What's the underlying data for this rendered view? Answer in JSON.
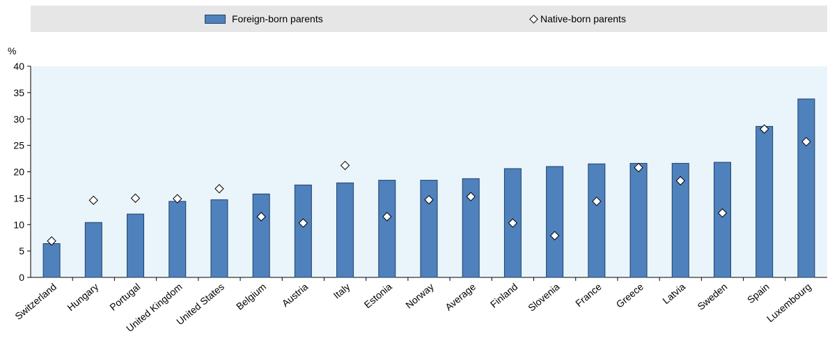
{
  "legend": {
    "foreign_label": "Foreign-born parents",
    "native_label": "Native-born parents"
  },
  "colors": {
    "bar_fill": "#4f81bd",
    "bar_stroke": "#1f3f66",
    "plot_bg": "#e9f5fb"
  },
  "chart_data": {
    "type": "bar",
    "ylabel": "%",
    "ylim": [
      0,
      40
    ],
    "yticks": [
      0,
      5,
      10,
      15,
      20,
      25,
      30,
      35,
      40
    ],
    "categories": [
      "Switzerland",
      "Hungary",
      "Portugal",
      "United Kingdom",
      "United States",
      "Belgium",
      "Austria",
      "Italy",
      "Estonia",
      "Norway",
      "Average",
      "Finland",
      "Slovenia",
      "France",
      "Greece",
      "Latvia",
      "Sweden",
      "Spain",
      "Luxembourg"
    ],
    "series": [
      {
        "name": "Foreign-born parents",
        "kind": "bar",
        "values": [
          6.4,
          10.4,
          12.0,
          14.4,
          14.7,
          15.8,
          17.5,
          17.9,
          18.4,
          18.4,
          18.7,
          20.6,
          21.0,
          21.5,
          21.6,
          21.6,
          21.8,
          28.6,
          33.8
        ]
      },
      {
        "name": "Native-born parents",
        "kind": "marker",
        "values": [
          6.9,
          14.6,
          15.0,
          14.9,
          16.8,
          11.5,
          10.3,
          21.2,
          11.5,
          14.7,
          15.3,
          10.3,
          7.9,
          14.4,
          20.8,
          18.3,
          12.2,
          28.1,
          25.7
        ]
      }
    ],
    "grid": false,
    "legend_position": "top"
  }
}
